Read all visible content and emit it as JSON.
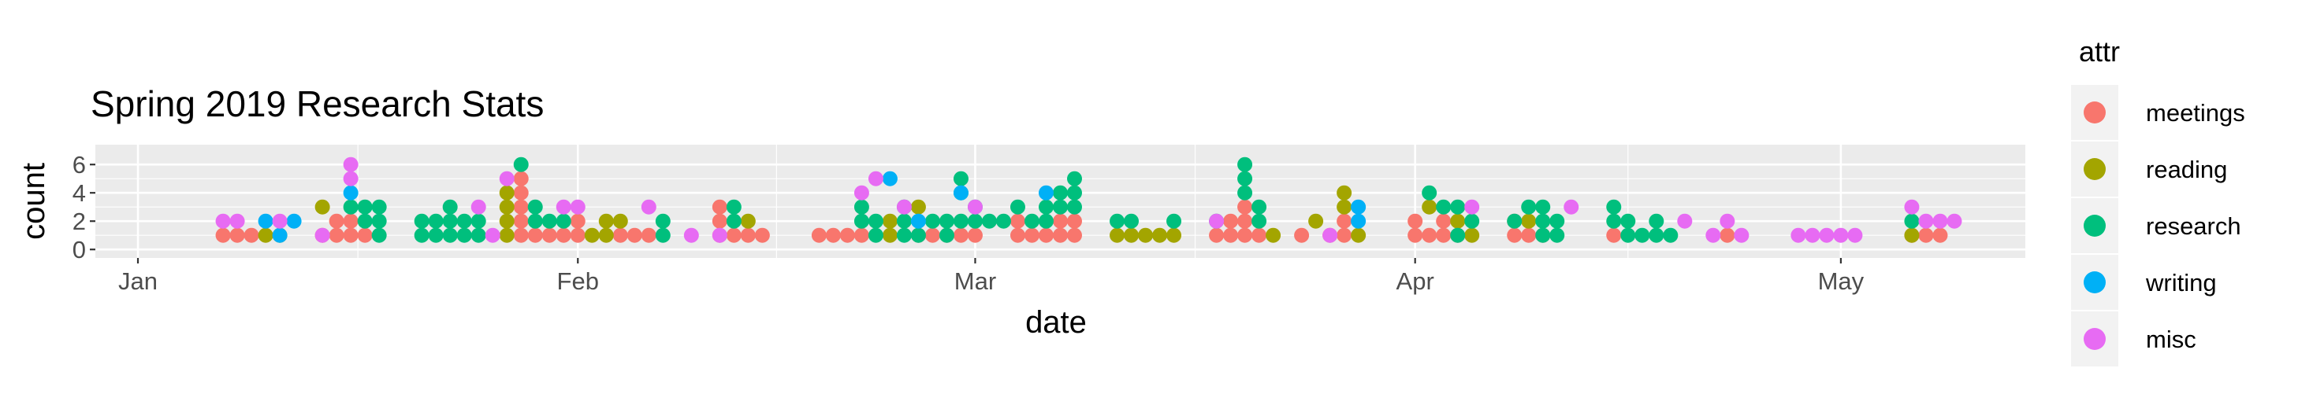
{
  "chart_data": {
    "type": "scatter",
    "title": "Spring 2019 Research Stats",
    "xlabel": "date",
    "ylabel": "count",
    "x_scale": "date",
    "xlim": [
      "2018-12-29",
      "2019-05-14"
    ],
    "ylim": [
      -0.6,
      7.4
    ],
    "x_ticks": [
      {
        "date": "2019-01-01",
        "label": "Jan"
      },
      {
        "date": "2019-02-01",
        "label": "Feb"
      },
      {
        "date": "2019-03-01",
        "label": "Mar"
      },
      {
        "date": "2019-04-01",
        "label": "Apr"
      },
      {
        "date": "2019-05-01",
        "label": "May"
      }
    ],
    "y_ticks": [
      0,
      2,
      4,
      6
    ],
    "grid": true,
    "legend": {
      "title": "attr",
      "position": "right"
    },
    "series": [
      {
        "name": "meetings",
        "color": "#F8766D",
        "points": [
          {
            "x": "2019-01-07",
            "y": [
              1
            ]
          },
          {
            "x": "2019-01-08",
            "y": [
              1
            ]
          },
          {
            "x": "2019-01-09",
            "y": [
              1
            ]
          },
          {
            "x": "2019-01-14",
            "y": [
              1
            ]
          },
          {
            "x": "2019-01-15",
            "y": [
              1,
              2
            ]
          },
          {
            "x": "2019-01-16",
            "y": [
              1,
              2
            ]
          },
          {
            "x": "2019-01-17",
            "y": [
              1
            ]
          },
          {
            "x": "2019-01-28",
            "y": [
              1,
              2,
              3,
              4,
              5
            ]
          },
          {
            "x": "2019-01-29",
            "y": [
              1
            ]
          },
          {
            "x": "2019-01-30",
            "y": [
              1
            ]
          },
          {
            "x": "2019-01-31",
            "y": [
              1
            ]
          },
          {
            "x": "2019-02-01",
            "y": [
              1,
              2
            ]
          },
          {
            "x": "2019-02-04",
            "y": [
              1
            ]
          },
          {
            "x": "2019-02-05",
            "y": [
              1
            ]
          },
          {
            "x": "2019-02-06",
            "y": [
              1
            ]
          },
          {
            "x": "2019-02-11",
            "y": [
              1,
              2,
              3
            ]
          },
          {
            "x": "2019-02-12",
            "y": [
              1
            ]
          },
          {
            "x": "2019-02-13",
            "y": [
              1
            ]
          },
          {
            "x": "2019-02-14",
            "y": [
              1
            ]
          },
          {
            "x": "2019-02-18",
            "y": [
              1
            ]
          },
          {
            "x": "2019-02-19",
            "y": [
              1
            ]
          },
          {
            "x": "2019-02-20",
            "y": [
              1
            ]
          },
          {
            "x": "2019-02-21",
            "y": [
              1
            ]
          },
          {
            "x": "2019-02-25",
            "y": [
              1
            ]
          },
          {
            "x": "2019-02-26",
            "y": [
              1
            ]
          },
          {
            "x": "2019-02-27",
            "y": [
              1
            ]
          },
          {
            "x": "2019-02-28",
            "y": [
              1
            ]
          },
          {
            "x": "2019-03-01",
            "y": [
              1
            ]
          },
          {
            "x": "2019-03-04",
            "y": [
              1,
              2
            ]
          },
          {
            "x": "2019-03-05",
            "y": [
              1
            ]
          },
          {
            "x": "2019-03-06",
            "y": [
              1
            ]
          },
          {
            "x": "2019-03-07",
            "y": [
              1,
              2
            ]
          },
          {
            "x": "2019-03-08",
            "y": [
              1,
              2
            ]
          },
          {
            "x": "2019-03-18",
            "y": [
              1
            ]
          },
          {
            "x": "2019-03-19",
            "y": [
              1,
              2
            ]
          },
          {
            "x": "2019-03-20",
            "y": [
              1,
              2,
              3
            ]
          },
          {
            "x": "2019-03-21",
            "y": [
              1
            ]
          },
          {
            "x": "2019-03-24",
            "y": [
              1
            ]
          },
          {
            "x": "2019-03-26",
            "y": [
              1
            ]
          },
          {
            "x": "2019-03-27",
            "y": [
              1,
              2
            ]
          },
          {
            "x": "2019-04-01",
            "y": [
              1,
              2
            ]
          },
          {
            "x": "2019-04-02",
            "y": [
              1
            ]
          },
          {
            "x": "2019-04-03",
            "y": [
              1,
              2
            ]
          },
          {
            "x": "2019-04-04",
            "y": [
              1
            ]
          },
          {
            "x": "2019-04-08",
            "y": [
              1,
              2
            ]
          },
          {
            "x": "2019-04-09",
            "y": [
              1
            ]
          },
          {
            "x": "2019-04-10",
            "y": [
              1
            ]
          },
          {
            "x": "2019-04-15",
            "y": [
              1
            ]
          },
          {
            "x": "2019-04-23",
            "y": [
              1
            ]
          },
          {
            "x": "2019-05-06",
            "y": [
              1
            ]
          },
          {
            "x": "2019-05-07",
            "y": [
              1
            ]
          },
          {
            "x": "2019-05-08",
            "y": [
              1
            ]
          }
        ]
      },
      {
        "name": "reading",
        "color": "#A3A500",
        "points": [
          {
            "x": "2019-01-10",
            "y": [
              1
            ]
          },
          {
            "x": "2019-01-11",
            "y": [
              1
            ]
          },
          {
            "x": "2019-01-14",
            "y": [
              3
            ]
          },
          {
            "x": "2019-01-27",
            "y": [
              1,
              2,
              3,
              4
            ]
          },
          {
            "x": "2019-02-02",
            "y": [
              1
            ]
          },
          {
            "x": "2019-02-03",
            "y": [
              1,
              2
            ]
          },
          {
            "x": "2019-02-04",
            "y": [
              2
            ]
          },
          {
            "x": "2019-02-13",
            "y": [
              2
            ]
          },
          {
            "x": "2019-02-23",
            "y": [
              1,
              2
            ]
          },
          {
            "x": "2019-02-25",
            "y": [
              3
            ]
          },
          {
            "x": "2019-03-11",
            "y": [
              1
            ]
          },
          {
            "x": "2019-03-12",
            "y": [
              1
            ]
          },
          {
            "x": "2019-03-13",
            "y": [
              1
            ]
          },
          {
            "x": "2019-03-14",
            "y": [
              1
            ]
          },
          {
            "x": "2019-03-15",
            "y": [
              1
            ]
          },
          {
            "x": "2019-03-22",
            "y": [
              1
            ]
          },
          {
            "x": "2019-03-25",
            "y": [
              2
            ]
          },
          {
            "x": "2019-03-27",
            "y": [
              3,
              4
            ]
          },
          {
            "x": "2019-03-28",
            "y": [
              1
            ]
          },
          {
            "x": "2019-04-02",
            "y": [
              3
            ]
          },
          {
            "x": "2019-04-04",
            "y": [
              2
            ]
          },
          {
            "x": "2019-04-05",
            "y": [
              1
            ]
          },
          {
            "x": "2019-04-09",
            "y": [
              2
            ]
          },
          {
            "x": "2019-05-06",
            "y": [
              1
            ]
          }
        ]
      },
      {
        "name": "research",
        "color": "#00BF7D",
        "points": [
          {
            "x": "2019-01-16",
            "y": [
              3
            ]
          },
          {
            "x": "2019-01-17",
            "y": [
              2,
              3
            ]
          },
          {
            "x": "2019-01-18",
            "y": [
              1,
              2,
              3
            ]
          },
          {
            "x": "2019-01-21",
            "y": [
              1,
              2
            ]
          },
          {
            "x": "2019-01-22",
            "y": [
              1,
              2
            ]
          },
          {
            "x": "2019-01-23",
            "y": [
              1,
              2,
              3
            ]
          },
          {
            "x": "2019-01-24",
            "y": [
              1,
              2
            ]
          },
          {
            "x": "2019-01-25",
            "y": [
              1,
              2
            ]
          },
          {
            "x": "2019-01-28",
            "y": [
              6
            ]
          },
          {
            "x": "2019-01-29",
            "y": [
              2,
              3
            ]
          },
          {
            "x": "2019-01-30",
            "y": [
              2
            ]
          },
          {
            "x": "2019-01-31",
            "y": [
              2
            ]
          },
          {
            "x": "2019-02-07",
            "y": [
              1,
              2
            ]
          },
          {
            "x": "2019-02-12",
            "y": [
              2,
              3
            ]
          },
          {
            "x": "2019-02-21",
            "y": [
              2,
              3
            ]
          },
          {
            "x": "2019-02-22",
            "y": [
              1,
              2
            ]
          },
          {
            "x": "2019-02-24",
            "y": [
              1,
              2,
              3
            ]
          },
          {
            "x": "2019-02-25",
            "y": [
              1
            ]
          },
          {
            "x": "2019-02-26",
            "y": [
              2
            ]
          },
          {
            "x": "2019-02-27",
            "y": [
              1,
              2
            ]
          },
          {
            "x": "2019-02-28",
            "y": [
              2,
              4,
              5
            ]
          },
          {
            "x": "2019-03-01",
            "y": [
              2,
              3
            ]
          },
          {
            "x": "2019-03-02",
            "y": [
              2
            ]
          },
          {
            "x": "2019-03-03",
            "y": [
              2
            ]
          },
          {
            "x": "2019-03-04",
            "y": [
              3
            ]
          },
          {
            "x": "2019-03-05",
            "y": [
              2
            ]
          },
          {
            "x": "2019-03-06",
            "y": [
              2,
              3
            ]
          },
          {
            "x": "2019-03-07",
            "y": [
              3,
              4
            ]
          },
          {
            "x": "2019-03-08",
            "y": [
              3,
              4,
              5
            ]
          },
          {
            "x": "2019-03-11",
            "y": [
              2
            ]
          },
          {
            "x": "2019-03-12",
            "y": [
              2
            ]
          },
          {
            "x": "2019-03-15",
            "y": [
              2
            ]
          },
          {
            "x": "2019-03-18",
            "y": [
              2
            ]
          },
          {
            "x": "2019-03-20",
            "y": [
              4,
              5,
              6
            ]
          },
          {
            "x": "2019-03-21",
            "y": [
              2,
              3
            ]
          },
          {
            "x": "2019-04-02",
            "y": [
              4
            ]
          },
          {
            "x": "2019-04-03",
            "y": [
              3
            ]
          },
          {
            "x": "2019-04-04",
            "y": [
              1,
              3
            ]
          },
          {
            "x": "2019-04-05",
            "y": [
              2
            ]
          },
          {
            "x": "2019-04-08",
            "y": [
              2
            ]
          },
          {
            "x": "2019-04-09",
            "y": [
              3
            ]
          },
          {
            "x": "2019-04-10",
            "y": [
              1,
              2,
              3
            ]
          },
          {
            "x": "2019-04-11",
            "y": [
              1,
              2
            ]
          },
          {
            "x": "2019-04-15",
            "y": [
              2,
              3
            ]
          },
          {
            "x": "2019-04-16",
            "y": [
              1,
              2
            ]
          },
          {
            "x": "2019-04-17",
            "y": [
              1
            ]
          },
          {
            "x": "2019-04-18",
            "y": [
              1,
              2
            ]
          },
          {
            "x": "2019-04-19",
            "y": [
              1
            ]
          },
          {
            "x": "2019-05-06",
            "y": [
              2
            ]
          }
        ]
      },
      {
        "name": "writing",
        "color": "#00B0F6",
        "points": [
          {
            "x": "2019-01-10",
            "y": [
              2
            ]
          },
          {
            "x": "2019-01-11",
            "y": [
              1
            ]
          },
          {
            "x": "2019-01-12",
            "y": [
              2
            ]
          },
          {
            "x": "2019-01-16",
            "y": [
              4
            ]
          },
          {
            "x": "2019-02-23",
            "y": [
              5
            ]
          },
          {
            "x": "2019-02-25",
            "y": [
              2
            ]
          },
          {
            "x": "2019-02-28",
            "y": [
              4
            ]
          },
          {
            "x": "2019-03-06",
            "y": [
              4
            ]
          },
          {
            "x": "2019-03-28",
            "y": [
              2,
              3
            ]
          }
        ]
      },
      {
        "name": "misc",
        "color": "#E76BF3",
        "points": [
          {
            "x": "2019-01-07",
            "y": [
              2
            ]
          },
          {
            "x": "2019-01-08",
            "y": [
              2
            ]
          },
          {
            "x": "2019-01-11",
            "y": [
              2
            ]
          },
          {
            "x": "2019-01-14",
            "y": [
              1
            ]
          },
          {
            "x": "2019-01-16",
            "y": [
              5,
              6
            ]
          },
          {
            "x": "2019-01-25",
            "y": [
              3
            ]
          },
          {
            "x": "2019-01-26",
            "y": [
              1
            ]
          },
          {
            "x": "2019-01-27",
            "y": [
              5
            ]
          },
          {
            "x": "2019-01-31",
            "y": [
              3
            ]
          },
          {
            "x": "2019-02-01",
            "y": [
              3
            ]
          },
          {
            "x": "2019-02-06",
            "y": [
              3
            ]
          },
          {
            "x": "2019-02-09",
            "y": [
              1
            ]
          },
          {
            "x": "2019-02-11",
            "y": [
              1
            ]
          },
          {
            "x": "2019-02-21",
            "y": [
              4
            ]
          },
          {
            "x": "2019-02-22",
            "y": [
              5
            ]
          },
          {
            "x": "2019-02-24",
            "y": [
              3
            ]
          },
          {
            "x": "2019-03-01",
            "y": [
              3
            ]
          },
          {
            "x": "2019-03-18",
            "y": [
              2
            ]
          },
          {
            "x": "2019-03-26",
            "y": [
              1
            ]
          },
          {
            "x": "2019-04-05",
            "y": [
              3
            ]
          },
          {
            "x": "2019-04-12",
            "y": [
              3
            ]
          },
          {
            "x": "2019-04-20",
            "y": [
              2
            ]
          },
          {
            "x": "2019-04-22",
            "y": [
              1
            ]
          },
          {
            "x": "2019-04-23",
            "y": [
              2
            ]
          },
          {
            "x": "2019-04-24",
            "y": [
              1
            ]
          },
          {
            "x": "2019-04-28",
            "y": [
              1
            ]
          },
          {
            "x": "2019-04-29",
            "y": [
              1
            ]
          },
          {
            "x": "2019-04-30",
            "y": [
              1
            ]
          },
          {
            "x": "2019-05-01",
            "y": [
              1
            ]
          },
          {
            "x": "2019-05-02",
            "y": [
              1
            ]
          },
          {
            "x": "2019-05-06",
            "y": [
              3
            ]
          },
          {
            "x": "2019-05-07",
            "y": [
              2
            ]
          },
          {
            "x": "2019-05-08",
            "y": [
              2
            ]
          },
          {
            "x": "2019-05-09",
            "y": [
              2
            ]
          }
        ]
      }
    ]
  }
}
